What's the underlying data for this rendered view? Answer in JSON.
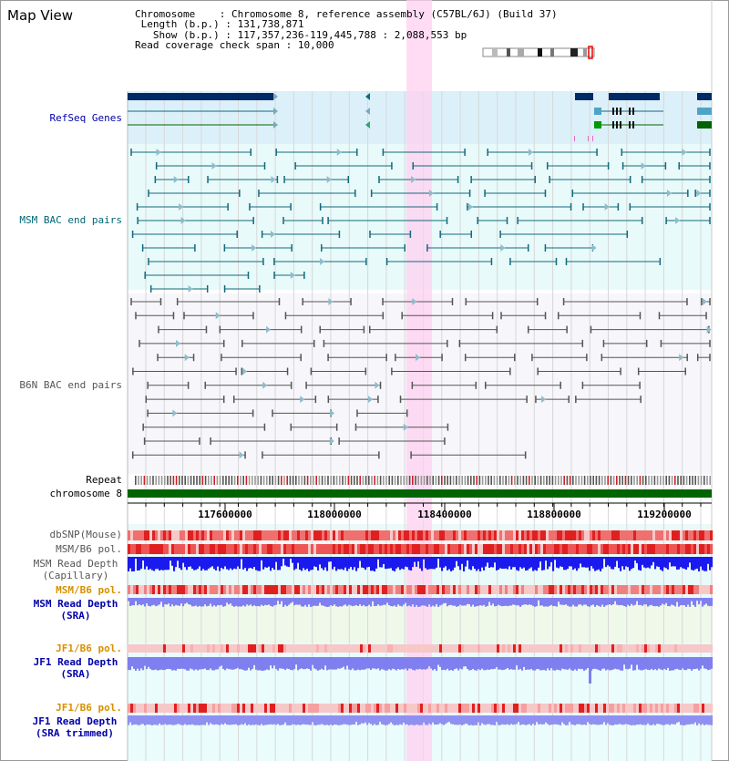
{
  "title": "Map View",
  "info": {
    "chromosome_label": "Chromosome",
    "chromosome_value": "Chromosome 8, reference assembly (C57BL/6J) (Build 37)",
    "length_label": "Length (b.p.)",
    "length_value": "131,738,871",
    "show_label": "Show (b.p.)",
    "show_value": "117,357,236-119,445,788 : 2,088,553 bp",
    "coverage_label": "Read coverage check span",
    "coverage_value": "10,000"
  },
  "tracks": {
    "refseq": "RefSeq Genes",
    "msm_bac": "MSM BAC end pairs",
    "b6n_bac": "B6N BAC end pairs",
    "repeat": "Repeat",
    "chromosome": "chromosome 8",
    "dbsnp": "dbSNP(Mouse)",
    "msm_b6_pol": "MSM/B6 pol.",
    "msm_depth_cap_1": "MSM Read Depth",
    "msm_depth_cap_2": "(Capillary)",
    "msm_b6_pol_2": "MSM/B6 pol.",
    "msm_depth_sra_1": "MSM Read Depth",
    "msm_depth_sra_2": "(SRA)",
    "jf1_b6_pol": "JF1/B6 pol.",
    "jf1_depth_sra_1": "JF1 Read Depth",
    "jf1_depth_sra_2": "(SRA)",
    "jf1_b6_pol_2": "JF1/B6 pol.",
    "jf1_depth_trim_1": "JF1 Read Depth",
    "jf1_depth_trim_2": "(SRA trimmed)"
  },
  "axis": {
    "ticks": [
      "117600000",
      "118000000",
      "118400000",
      "118800000",
      "119200000"
    ]
  },
  "colors": {
    "refseq_gene": "#002a66",
    "refseq_bg": "#dcf0fa",
    "msm_bac": "#13697c",
    "b6n_bac": "#555555",
    "chromosome_bar": "#006400",
    "highlight": "#ffd0f0",
    "depth_blue": "#1a1aee",
    "depth_light": "#7f7ff0",
    "label_blue": "#0000aa",
    "label_teal": "#006677",
    "label_orange": "#d89000"
  }
}
